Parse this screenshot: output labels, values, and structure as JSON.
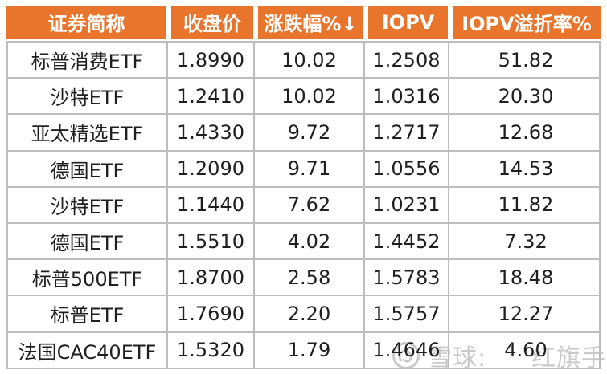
{
  "chart_data": {
    "type": "table",
    "title": "",
    "columns": [
      "证券简称",
      "收盘价",
      "涨跌幅%↓",
      "IOPV",
      "IOPV溢折率%"
    ],
    "column_keys": [
      "name",
      "close-price",
      "change-pct",
      "iopv",
      "iopv-premium-pct"
    ],
    "sorted_column": "涨跌幅%",
    "sort_direction": "descending",
    "rows": [
      [
        "标普消费ETF",
        "1.8990",
        "10.02",
        "1.2508",
        "51.82"
      ],
      [
        "沙特ETF",
        "1.2410",
        "10.02",
        "1.0316",
        "20.30"
      ],
      [
        "亚太精选ETF",
        "1.4330",
        "9.72",
        "1.2717",
        "12.68"
      ],
      [
        "德国ETF",
        "1.2090",
        "9.71",
        "1.0556",
        "14.53"
      ],
      [
        "沙特ETF",
        "1.1440",
        "7.62",
        "1.0231",
        "11.82"
      ],
      [
        "德国ETF",
        "1.5510",
        "4.02",
        "1.4452",
        "7.32"
      ],
      [
        "标普500ETF",
        "1.8700",
        "2.58",
        "1.5783",
        "18.48"
      ],
      [
        "标普ETF",
        "1.7690",
        "2.20",
        "1.5757",
        "12.27"
      ],
      [
        "法国CAC40ETF",
        "1.5320",
        "1.79",
        "1.4646",
        "4.60"
      ]
    ]
  },
  "watermark": {
    "brand": "雪球:",
    "user": "红旗手",
    "logo": "xueqiu-snowball-icon"
  },
  "colors": {
    "header_bg": "#E8752B",
    "header_text": "#FFFFFF",
    "border": "#BDBDBD",
    "cell_text": "#1F1F1F",
    "watermark": "#C9C9C9"
  }
}
